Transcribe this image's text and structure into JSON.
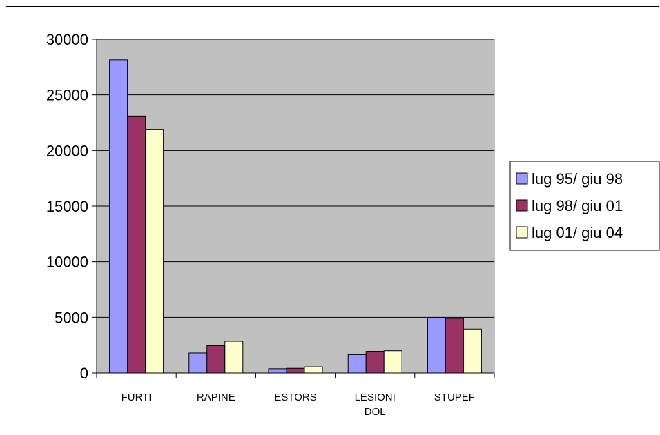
{
  "chart_data": {
    "type": "bar",
    "categories": [
      [
        "FURTI"
      ],
      [
        "RAPINE"
      ],
      [
        "ESTORS"
      ],
      [
        "LESIONI",
        "DOL"
      ],
      [
        "STUPEF"
      ]
    ],
    "series": [
      {
        "name": "lug 95/ giu 98",
        "values": [
          28150,
          1800,
          380,
          1650,
          4950
        ]
      },
      {
        "name": "lug 98/ giu 01",
        "values": [
          23100,
          2450,
          420,
          1950,
          4900
        ]
      },
      {
        "name": "lug 01/ giu 04",
        "values": [
          21900,
          2850,
          550,
          2000,
          3950
        ]
      }
    ],
    "yticks": [
      "0",
      "5000",
      "10000",
      "15000",
      "20000",
      "25000",
      "30000"
    ],
    "ylim": [
      0,
      30000
    ],
    "grid": true,
    "legend_position": "right",
    "colors": {
      "plot_background": "#c0c0c0",
      "series": [
        "#9999ff",
        "#993366",
        "#ffffcc"
      ],
      "gridline": "#000000",
      "bar_stroke": "#000000"
    }
  }
}
